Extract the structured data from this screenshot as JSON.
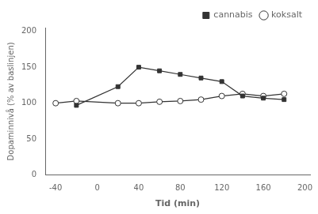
{
  "chart_data": {
    "type": "line",
    "xlabel": "Tid (min)",
    "ylabel": "Dopaminnivå (% av baslinjen)",
    "series": [
      {
        "name": "cannabis",
        "color": "#333333",
        "marker": "square",
        "x": [
          -20,
          20,
          40,
          60,
          80,
          100,
          120,
          140,
          160,
          180
        ],
        "values": [
          97,
          123,
          150,
          145,
          140,
          135,
          130,
          110,
          107,
          105
        ]
      },
      {
        "name": "koksalt",
        "color": "#333333",
        "marker": "circle",
        "x": [
          -40,
          -20,
          20,
          40,
          60,
          80,
          100,
          120,
          140,
          160,
          180
        ],
        "values": [
          100,
          103,
          100,
          100,
          102,
          103,
          105,
          110,
          113,
          110,
          113
        ]
      }
    ],
    "xlim": [
      -50,
      205
    ],
    "xticks": [
      -40,
      0,
      40,
      80,
      120,
      160,
      200
    ],
    "ylim": [
      0,
      205
    ],
    "yticks": [
      0,
      50,
      100,
      150,
      200
    ],
    "grid": false,
    "legend": "upper right"
  }
}
